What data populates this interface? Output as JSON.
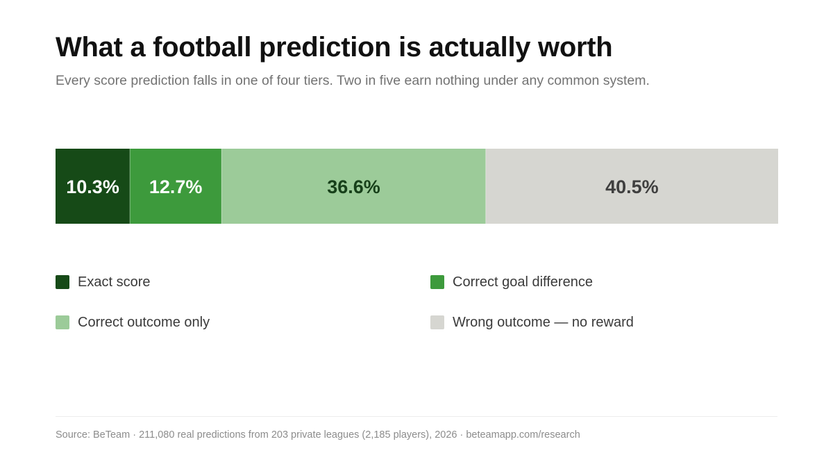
{
  "header": {
    "title": "What a football prediction is actually worth",
    "subtitle": "Every score prediction falls in one of four tiers. Two in five earn nothing under any common system."
  },
  "chart_data": {
    "type": "bar",
    "orientation": "horizontal",
    "stacked": true,
    "unit": "%",
    "categories": [
      "Exact score",
      "Correct goal difference",
      "Correct outcome only",
      "Wrong outcome — no reward"
    ],
    "values": [
      10.3,
      12.7,
      36.6,
      40.5
    ],
    "data_labels": [
      "10.3%",
      "12.7%",
      "36.6%",
      "40.5%"
    ],
    "colors": [
      "#164a17",
      "#3d9a3c",
      "#9ccb99",
      "#d6d6d1"
    ],
    "label_colors": [
      "#ffffff",
      "#ffffff",
      "#17401a",
      "#3f3f3f"
    ],
    "grid": false,
    "legend_placement": "bottom"
  },
  "footer": {
    "source": "Source: BeTeam · 211,080 real predictions from 203 private leagues (2,185 players), 2026 · beteamapp.com/research"
  }
}
